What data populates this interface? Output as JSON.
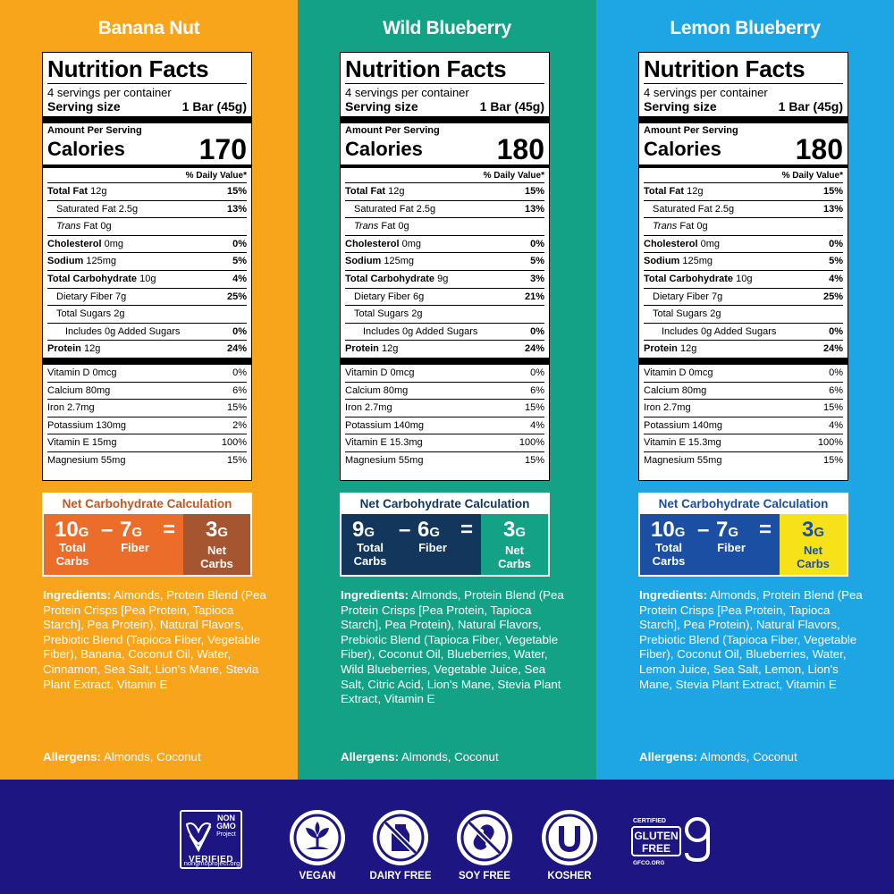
{
  "columns": [
    {
      "flavor": "Banana Nut",
      "bg": "#f8a51c",
      "label": {
        "title": "Nutrition Facts",
        "servings": "4 servings per container",
        "serving_size_label": "Serving size",
        "serving_size_value": "1 Bar (45g)",
        "amount": "Amount Per Serving",
        "calories_label": "Calories",
        "calories": "170",
        "dv_header": "% Daily Value*",
        "rows": [
          {
            "name": "Total Fat",
            "amt": "12g",
            "pct": "15%"
          },
          {
            "name": "Saturated Fat",
            "amt": "2.5g",
            "pct": "13%"
          },
          {
            "name": "Trans",
            "amt": "Fat 0g",
            "pct": ""
          },
          {
            "name": "Cholesterol",
            "amt": "0mg",
            "pct": "0%"
          },
          {
            "name": "Sodium",
            "amt": "125mg",
            "pct": "5%"
          },
          {
            "name": "Total Carbohydrate",
            "amt": "10g",
            "pct": "4%"
          },
          {
            "name": "Dietary Fiber",
            "amt": "7g",
            "pct": "25%"
          },
          {
            "name": "Total Sugars",
            "amt": "2g",
            "pct": ""
          },
          {
            "name": "Includes 0g Added Sugars",
            "amt": "",
            "pct": "0%"
          },
          {
            "name": "Protein",
            "amt": "12g",
            "pct": "24%"
          }
        ],
        "vitamins": [
          {
            "name": "Vitamin D 0mcg",
            "pct": "0%"
          },
          {
            "name": "Calcium 80mg",
            "pct": "6%"
          },
          {
            "name": "Iron 2.7mg",
            "pct": "15%"
          },
          {
            "name": "Potassium 130mg",
            "pct": "2%"
          },
          {
            "name": "Vitamin E 15mg",
            "pct": "100%"
          },
          {
            "name": "Magnesium 55mg",
            "pct": "15%"
          }
        ]
      },
      "net": {
        "title": "Net Carbohydrate Calculation",
        "title_color": "#c4571e",
        "left_bg": "#ec6c2a",
        "right_bg": "#a55530",
        "right_color": "#ffffff",
        "carbs": "10",
        "fiber": "7",
        "net": "3",
        "unit": "G",
        "minus": "–",
        "equals": "=",
        "carbs_label": "Total Carbs",
        "fiber_label": "Fiber",
        "net_label": "Net Carbs"
      },
      "ingredients_label": "Ingredients:",
      "ingredients": " Almonds, Protein Blend (Pea Protein Crisps [Pea Protein, Tapioca Starch], Pea Protein), Natural Flavors, Prebiotic Blend (Tapioca Fiber, Vegetable Fiber), Banana, Coconut Oil, Water, Cinnamon, Sea Salt, Lion's Mane, Stevia Plant Extract, Vitamin E",
      "allergens_label": "Allergens:",
      "allergens": " Almonds, Coconut"
    },
    {
      "flavor": "Wild Blueberry",
      "bg": "#14a287",
      "label": {
        "title": "Nutrition Facts",
        "servings": "4 servings per container",
        "serving_size_label": "Serving size",
        "serving_size_value": "1 Bar (45g)",
        "amount": "Amount Per Serving",
        "calories_label": "Calories",
        "calories": "180",
        "dv_header": "% Daily Value*",
        "rows": [
          {
            "name": "Total Fat",
            "amt": "12g",
            "pct": "15%"
          },
          {
            "name": "Saturated Fat",
            "amt": "2.5g",
            "pct": "13%"
          },
          {
            "name": "Trans",
            "amt": "Fat 0g",
            "pct": ""
          },
          {
            "name": "Cholesterol",
            "amt": "0mg",
            "pct": "0%"
          },
          {
            "name": "Sodium",
            "amt": "125mg",
            "pct": "5%"
          },
          {
            "name": "Total Carbohydrate",
            "amt": "9g",
            "pct": "3%"
          },
          {
            "name": "Dietary Fiber",
            "amt": "6g",
            "pct": "21%"
          },
          {
            "name": "Total Sugars",
            "amt": "2g",
            "pct": ""
          },
          {
            "name": "Includes 0g Added Sugars",
            "amt": "",
            "pct": "0%"
          },
          {
            "name": "Protein",
            "amt": "12g",
            "pct": "24%"
          }
        ],
        "vitamins": [
          {
            "name": "Vitamin D 0mcg",
            "pct": "0%"
          },
          {
            "name": "Calcium 80mg",
            "pct": "6%"
          },
          {
            "name": "Iron 2.7mg",
            "pct": "15%"
          },
          {
            "name": "Potassium 140mg",
            "pct": "4%"
          },
          {
            "name": "Vitamin E 15.3mg",
            "pct": "100%"
          },
          {
            "name": "Magnesium 55mg",
            "pct": "15%"
          }
        ]
      },
      "net": {
        "title": "Net Carbohydrate Calculation",
        "title_color": "#13375c",
        "left_bg": "#13375c",
        "right_bg": "#14a287",
        "right_color": "#ffffff",
        "carbs": "9",
        "fiber": "6",
        "net": "3",
        "unit": "G",
        "minus": "–",
        "equals": "=",
        "carbs_label": "Total Carbs",
        "fiber_label": "Fiber",
        "net_label": "Net Carbs"
      },
      "ingredients_label": "Ingredients:",
      "ingredients": " Almonds, Protein Blend (Pea Protein Crisps [Pea Protein, Tapioca Starch], Pea Protein), Natural Flavors, Prebiotic Blend (Tapioca Fiber, Vegetable Fiber), Coconut Oil, Blueberries, Water, Wild Blueberries, Vegetable Juice, Sea Salt, Citric Acid, Lion's Mane, Stevia Plant Extract, Vitamin E",
      "allergens_label": "Allergens:",
      "allergens": " Almonds, Coconut"
    },
    {
      "flavor": "Lemon Blueberry",
      "bg": "#1ea5e3",
      "label": {
        "title": "Nutrition Facts",
        "servings": "4 servings per container",
        "serving_size_label": "Serving size",
        "serving_size_value": "1 Bar (45g)",
        "amount": "Amount Per Serving",
        "calories_label": "Calories",
        "calories": "180",
        "dv_header": "% Daily Value*",
        "rows": [
          {
            "name": "Total Fat",
            "amt": "12g",
            "pct": "15%"
          },
          {
            "name": "Saturated Fat",
            "amt": "2.5g",
            "pct": "13%"
          },
          {
            "name": "Trans",
            "amt": "Fat 0g",
            "pct": ""
          },
          {
            "name": "Cholesterol",
            "amt": "0mg",
            "pct": "0%"
          },
          {
            "name": "Sodium",
            "amt": "125mg",
            "pct": "5%"
          },
          {
            "name": "Total Carbohydrate",
            "amt": "10g",
            "pct": "4%"
          },
          {
            "name": "Dietary Fiber",
            "amt": "7g",
            "pct": "25%"
          },
          {
            "name": "Total Sugars",
            "amt": "2g",
            "pct": ""
          },
          {
            "name": "Includes 0g Added Sugars",
            "amt": "",
            "pct": "0%"
          },
          {
            "name": "Protein",
            "amt": "12g",
            "pct": "24%"
          }
        ],
        "vitamins": [
          {
            "name": "Vitamin D 0mcg",
            "pct": "0%"
          },
          {
            "name": "Calcium 80mg",
            "pct": "6%"
          },
          {
            "name": "Iron 2.7mg",
            "pct": "15%"
          },
          {
            "name": "Potassium 140mg",
            "pct": "4%"
          },
          {
            "name": "Vitamin E 15.3mg",
            "pct": "100%"
          },
          {
            "name": "Magnesium 55mg",
            "pct": "15%"
          }
        ]
      },
      "net": {
        "title": "Net Carbohydrate Calculation",
        "title_color": "#1a4fa3",
        "left_bg": "#1a4fa3",
        "right_bg": "#f7e21a",
        "right_color": "#1a4fa3",
        "carbs": "10",
        "fiber": "7",
        "net": "3",
        "unit": "G",
        "minus": "–",
        "equals": "=",
        "carbs_label": "Total Carbs",
        "fiber_label": "Fiber",
        "net_label": "Net Carbs"
      },
      "ingredients_label": "Ingredients:",
      "ingredients": " Almonds, Protein Blend (Pea Protein Crisps [Pea Protein, Tapioca Starch], Pea Protein), Natural Flavors, Prebiotic Blend (Tapioca Fiber, Vegetable Fiber), Coconut Oil, Blueberries, Water, Lemon Juice, Sea Salt, Lemon, Lion's Mane, Stevia Plant Extract, Vitamin E",
      "allergens_label": "Allergens:",
      "allergens": " Almonds, Coconut"
    }
  ],
  "footer": {
    "bg": "#1c1582",
    "nongmo": {
      "line1": "NON",
      "line2": "GMO",
      "line3": "Project",
      "line4": "VERIFIED",
      "url": "nongmoproject.org",
      "icon": "butterfly-check-icon"
    },
    "badges": [
      {
        "label": "VEGAN",
        "icon": "leaf-sprout-icon"
      },
      {
        "label": "DAIRY FREE",
        "icon": "no-milk-icon"
      },
      {
        "label": "SOY FREE",
        "icon": "no-soybean-icon"
      },
      {
        "label": "KOSHER",
        "icon": "kosher-u-icon"
      }
    ],
    "gluten_free": {
      "top": "CERTIFIED",
      "line1": "GLUTEN",
      "line2": "FREE",
      "org": "GFCO.ORG",
      "icon": "gf-g-icon"
    }
  }
}
